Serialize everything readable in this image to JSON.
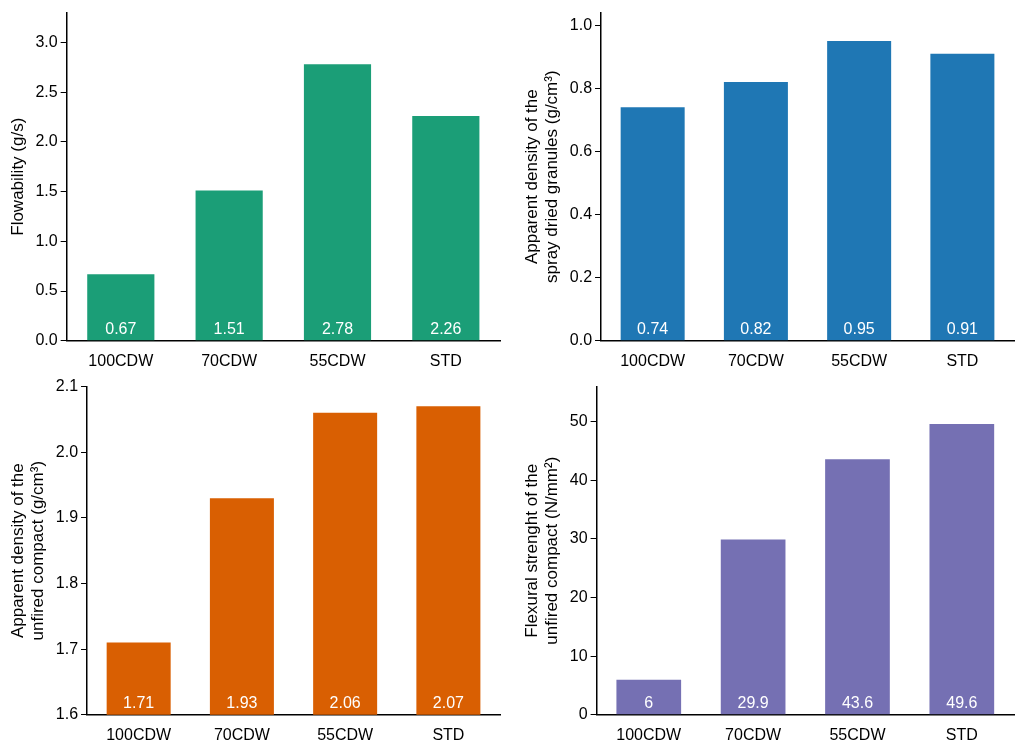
{
  "chart_data": [
    {
      "type": "bar",
      "ylabel": "Flowability (g/s)",
      "categories": [
        "100CDW",
        "70CDW",
        "55CDW",
        "STD"
      ],
      "values": [
        0.67,
        1.51,
        2.78,
        2.26
      ],
      "color": "#1b9e77",
      "ylim": [
        0,
        3.3
      ],
      "yticks": [
        {
          "value": 0,
          "label": "0.0"
        },
        0.5,
        {
          "value": 1,
          "label": "1.0"
        },
        1.5,
        {
          "value": 2,
          "label": "2.0"
        },
        2.5,
        {
          "value": 3,
          "label": "3.0"
        }
      ],
      "data_labels": true,
      "grid": false,
      "legend": false
    },
    {
      "type": "bar",
      "ylabel": "Apparent density of the\nspray dried granules (g/cm³)",
      "categories": [
        "100CDW",
        "70CDW",
        "55CDW",
        "STD"
      ],
      "values": [
        0.74,
        0.82,
        0.95,
        0.91
      ],
      "color": "#1f77b4",
      "ylim": [
        0,
        1.04
      ],
      "yticks": [
        {
          "value": 0,
          "label": "0.0"
        },
        0.2,
        0.4,
        0.6,
        0.8,
        {
          "value": 1,
          "label": "1.0"
        }
      ],
      "data_labels": true,
      "grid": false,
      "legend": false
    },
    {
      "type": "bar",
      "ylabel": "Apparent density of the\nunfired compact (g/cm³)",
      "categories": [
        "100CDW",
        "70CDW",
        "55CDW",
        "STD"
      ],
      "values": [
        1.71,
        1.93,
        2.06,
        2.07
      ],
      "color": "#d95f02",
      "ylim": [
        1.6,
        2.1
      ],
      "yticks": [
        1.6,
        1.7,
        1.8,
        1.9,
        {
          "value": 2,
          "label": "2.0"
        },
        2.1
      ],
      "data_labels": true,
      "grid": false,
      "legend": false
    },
    {
      "type": "bar",
      "ylabel": "Flexural strenght of the\nunfired compact (N/mm²)",
      "categories": [
        "100CDW",
        "70CDW",
        "55CDW",
        "STD"
      ],
      "values": [
        6,
        29.9,
        43.6,
        49.6
      ],
      "color": "#7570b3",
      "ylim": [
        0,
        56
      ],
      "yticks": [
        0,
        10,
        20,
        30,
        40,
        50
      ],
      "data_labels": true,
      "grid": false,
      "legend": false
    }
  ]
}
